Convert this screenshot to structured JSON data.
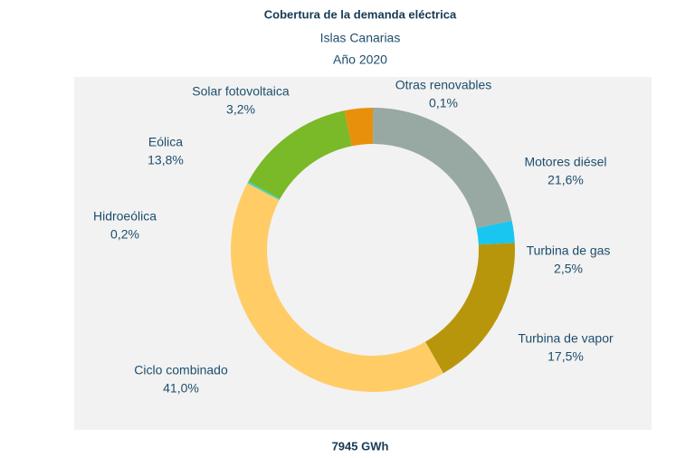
{
  "chart_data": {
    "type": "donut",
    "title": "Cobertura de la demanda  eléctrica",
    "subtitle": [
      "Islas Canarias",
      "Año 2020"
    ],
    "footer": "7945 GWh",
    "categories": [
      "Otras renovables",
      "Motores diésel",
      "Turbina de gas",
      "Turbina de vapor",
      "Ciclo combinado",
      "Hidroeólica",
      "Eólica",
      "Solar fotovoltaica"
    ],
    "values": [
      0.1,
      21.6,
      2.5,
      17.5,
      41.0,
      0.2,
      13.8,
      3.2
    ],
    "value_labels": [
      "0,1%",
      "21,6%",
      "2,5%",
      "17,5%",
      "41,0%",
      "0,2%",
      "13,8%",
      "3,2%"
    ],
    "colors": [
      "#8fa89c",
      "#97a9a2",
      "#19c6f0",
      "#b8960c",
      "#ffcc66",
      "#33d6c8",
      "#7ab928",
      "#e8900c"
    ]
  }
}
